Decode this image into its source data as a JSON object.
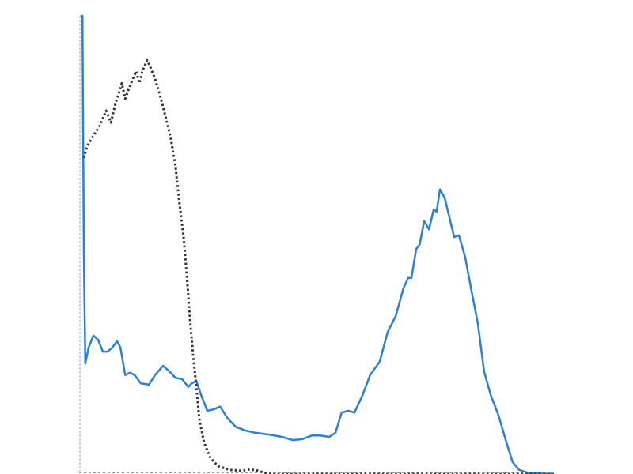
{
  "chart_data": {
    "type": "line",
    "title": "",
    "xlabel": "",
    "ylabel": "",
    "xlim": [
      0,
      100
    ],
    "ylim": [
      0,
      100
    ],
    "grid": false,
    "legend": "none",
    "series": [
      {
        "style": "solid",
        "color": "#2a7fd8",
        "x": [
          0.3,
          0.7,
          1,
          1.3,
          2,
          3,
          4,
          5,
          6,
          7,
          8,
          8.7,
          9.7,
          10.7,
          11.7,
          13,
          14.7,
          16,
          17.7,
          19,
          20.3,
          21.7,
          23,
          23.7,
          24.7,
          25.7,
          27,
          28.3,
          29.7,
          31.3,
          33,
          35,
          37,
          40,
          42.7,
          45,
          47,
          49,
          50.7,
          52.7,
          54,
          55.3,
          56.7,
          58,
          59.7,
          61.3,
          63.3,
          65,
          66.7,
          68.3,
          69.3,
          70,
          71,
          71.7,
          72.7,
          73.7,
          74.7,
          75.3,
          76,
          77,
          78,
          79,
          80,
          81.3,
          82.7,
          84,
          85.3,
          86.7,
          88.3,
          90,
          91.3,
          92.7,
          94.7,
          100
        ],
        "y": [
          100,
          100,
          48.3,
          24.1,
          27.6,
          30.2,
          29.3,
          26.7,
          26.7,
          27.6,
          29.0,
          27.6,
          21.6,
          22.1,
          21.6,
          19.8,
          19.5,
          21.6,
          23.6,
          22.4,
          21.0,
          20.7,
          19.0,
          19.8,
          20.3,
          17.2,
          13.8,
          14.1,
          14.7,
          12.1,
          10.3,
          9.5,
          9.0,
          8.6,
          8.1,
          7.4,
          7.6,
          8.4,
          8.4,
          8.1,
          9.0,
          13.4,
          13.8,
          13.4,
          17.2,
          21.6,
          24.5,
          31.0,
          34.5,
          40.5,
          42.8,
          42.8,
          49.1,
          50,
          55.2,
          53.4,
          57.8,
          57.2,
          62.1,
          60.3,
          56.0,
          51.7,
          52.1,
          47.4,
          39.7,
          32.8,
          22.4,
          17.2,
          12.9,
          6.9,
          2.6,
          0.9,
          0.2,
          0
        ]
      },
      {
        "style": "dotted",
        "color": "#333333",
        "x": [
          1,
          1.7,
          2.7,
          3.7,
          4.3,
          5,
          5.7,
          6.7,
          7.7,
          8.3,
          9,
          9.7,
          10.3,
          11.3,
          12,
          12.7,
          13.3,
          14.3,
          15,
          16,
          17,
          18.3,
          19.3,
          20.3,
          21,
          22,
          22.7,
          23.3,
          24,
          24.7,
          25.3,
          26.3,
          27.7,
          29.3,
          31.7,
          34.3,
          36,
          37.7,
          40,
          100
        ],
        "y": [
          69.0,
          71.6,
          73.3,
          75.0,
          75.9,
          77.6,
          79.3,
          76.7,
          81.0,
          82.8,
          85.3,
          81.9,
          83.6,
          86.2,
          87.9,
          85.3,
          87.9,
          90.3,
          88.8,
          86.2,
          82.8,
          77.6,
          73.3,
          67.2,
          60.3,
          51.7,
          43.1,
          34.5,
          25.9,
          19.0,
          12.1,
          6.9,
          3.4,
          1.7,
          0.9,
          0.7,
          1.0,
          0.7,
          0,
          0
        ]
      }
    ]
  }
}
